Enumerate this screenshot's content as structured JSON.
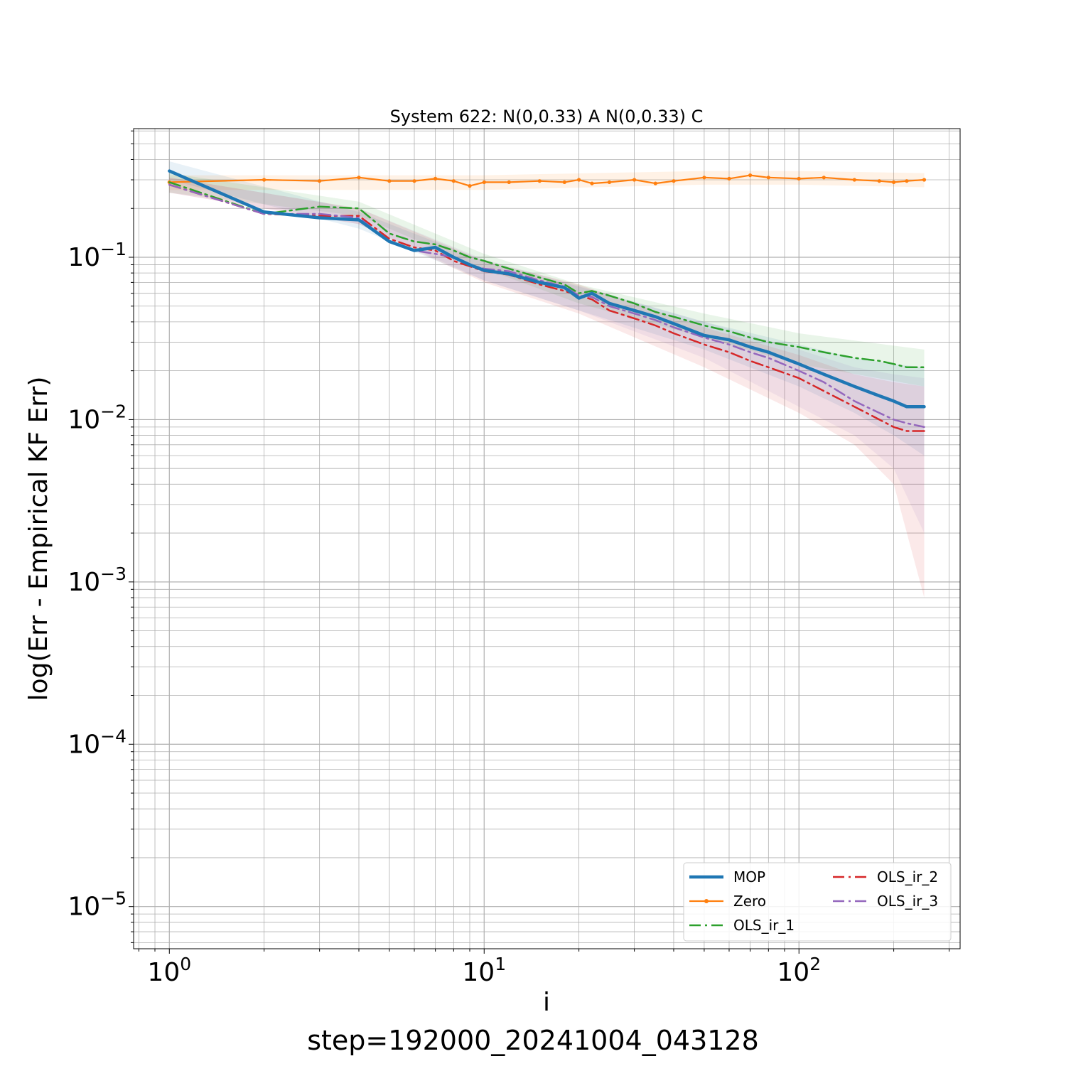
{
  "chart_data": {
    "type": "line",
    "title": "System 622: N(0,0.33) A N(0,0.33) C",
    "xlabel": "i",
    "ylabel": "log(Err - Empirical KF Err)",
    "footer": "step=192000_20241004_043128",
    "xscale": "log",
    "yscale": "log",
    "xlim": [
      0.77,
      325
    ],
    "ylim": [
      5.5e-06,
      0.62
    ],
    "grid": true,
    "legend_position": "bottom-right",
    "x_ticks": [
      {
        "value": 1,
        "base": "10",
        "exp": "0"
      },
      {
        "value": 10,
        "base": "10",
        "exp": "1"
      },
      {
        "value": 100,
        "base": "10",
        "exp": "2"
      }
    ],
    "y_ticks": [
      {
        "value": 0.1,
        "base": "10",
        "exp": "−1"
      },
      {
        "value": 0.01,
        "base": "10",
        "exp": "−2"
      },
      {
        "value": 0.001,
        "base": "10",
        "exp": "−3"
      },
      {
        "value": 0.0001,
        "base": "10",
        "exp": "−4"
      },
      {
        "value": 1e-05,
        "base": "10",
        "exp": "−5"
      }
    ],
    "series": [
      {
        "name": "MOP",
        "color": "#1f77b4",
        "style": "solid",
        "width": 4.5,
        "marker": false,
        "points": [
          [
            1,
            0.34
          ],
          [
            2,
            0.19
          ],
          [
            3,
            0.175
          ],
          [
            4,
            0.17
          ],
          [
            5,
            0.125
          ],
          [
            6,
            0.11
          ],
          [
            7,
            0.115
          ],
          [
            8,
            0.1
          ],
          [
            9,
            0.09
          ],
          [
            10,
            0.083
          ],
          [
            12,
            0.079
          ],
          [
            15,
            0.07
          ],
          [
            18,
            0.065
          ],
          [
            20,
            0.056
          ],
          [
            22,
            0.06
          ],
          [
            25,
            0.052
          ],
          [
            30,
            0.047
          ],
          [
            35,
            0.043
          ],
          [
            40,
            0.039
          ],
          [
            50,
            0.033
          ],
          [
            60,
            0.031
          ],
          [
            70,
            0.028
          ],
          [
            80,
            0.026
          ],
          [
            100,
            0.022
          ],
          [
            120,
            0.019
          ],
          [
            150,
            0.016
          ],
          [
            180,
            0.014
          ],
          [
            200,
            0.013
          ],
          [
            220,
            0.012
          ],
          [
            250,
            0.012
          ]
        ],
        "band": [
          [
            1,
            0.39,
            0.3
          ],
          [
            4,
            0.19,
            0.15
          ],
          [
            10,
            0.095,
            0.072
          ],
          [
            20,
            0.066,
            0.047
          ],
          [
            50,
            0.04,
            0.027
          ],
          [
            100,
            0.029,
            0.016
          ],
          [
            150,
            0.024,
            0.011
          ],
          [
            200,
            0.022,
            0.008
          ],
          [
            250,
            0.021,
            0.006
          ]
        ]
      },
      {
        "name": "Zero",
        "color": "#ff7f0e",
        "style": "solid",
        "width": 2.2,
        "marker": true,
        "points": [
          [
            1,
            0.29
          ],
          [
            2,
            0.3
          ],
          [
            3,
            0.295
          ],
          [
            4,
            0.31
          ],
          [
            5,
            0.295
          ],
          [
            6,
            0.295
          ],
          [
            7,
            0.305
          ],
          [
            8,
            0.295
          ],
          [
            9,
            0.275
          ],
          [
            10,
            0.29
          ],
          [
            12,
            0.29
          ],
          [
            15,
            0.295
          ],
          [
            18,
            0.29
          ],
          [
            20,
            0.3
          ],
          [
            22,
            0.285
          ],
          [
            25,
            0.29
          ],
          [
            30,
            0.3
          ],
          [
            35,
            0.285
          ],
          [
            40,
            0.295
          ],
          [
            50,
            0.31
          ],
          [
            60,
            0.305
          ],
          [
            70,
            0.32
          ],
          [
            80,
            0.31
          ],
          [
            100,
            0.305
          ],
          [
            120,
            0.31
          ],
          [
            150,
            0.3
          ],
          [
            180,
            0.295
          ],
          [
            200,
            0.29
          ],
          [
            220,
            0.295
          ],
          [
            250,
            0.3
          ]
        ],
        "band": [
          [
            1,
            0.32,
            0.26
          ],
          [
            10,
            0.32,
            0.26
          ],
          [
            50,
            0.34,
            0.28
          ],
          [
            100,
            0.34,
            0.28
          ],
          [
            250,
            0.33,
            0.27
          ]
        ]
      },
      {
        "name": "OLS_ir_1",
        "color": "#2ca02c",
        "style": "dashdot",
        "width": 2.5,
        "marker": false,
        "points": [
          [
            1,
            0.29
          ],
          [
            2,
            0.185
          ],
          [
            3,
            0.205
          ],
          [
            4,
            0.2
          ],
          [
            5,
            0.14
          ],
          [
            6,
            0.125
          ],
          [
            7,
            0.12
          ],
          [
            8,
            0.11
          ],
          [
            9,
            0.1
          ],
          [
            10,
            0.095
          ],
          [
            12,
            0.085
          ],
          [
            15,
            0.075
          ],
          [
            18,
            0.068
          ],
          [
            20,
            0.06
          ],
          [
            22,
            0.062
          ],
          [
            25,
            0.058
          ],
          [
            30,
            0.052
          ],
          [
            35,
            0.046
          ],
          [
            40,
            0.043
          ],
          [
            50,
            0.038
          ],
          [
            60,
            0.035
          ],
          [
            70,
            0.032
          ],
          [
            80,
            0.03
          ],
          [
            100,
            0.028
          ],
          [
            120,
            0.026
          ],
          [
            150,
            0.024
          ],
          [
            180,
            0.023
          ],
          [
            200,
            0.022
          ],
          [
            220,
            0.021
          ],
          [
            250,
            0.021
          ]
        ],
        "band": [
          [
            1,
            0.33,
            0.25
          ],
          [
            4,
            0.22,
            0.18
          ],
          [
            10,
            0.105,
            0.085
          ],
          [
            20,
            0.068,
            0.052
          ],
          [
            50,
            0.045,
            0.032
          ],
          [
            100,
            0.034,
            0.022
          ],
          [
            250,
            0.027,
            0.016
          ]
        ]
      },
      {
        "name": "OLS_ir_2",
        "color": "#d62728",
        "style": "dashdot",
        "width": 2.5,
        "marker": false,
        "points": [
          [
            1,
            0.28
          ],
          [
            2,
            0.185
          ],
          [
            3,
            0.18
          ],
          [
            4,
            0.18
          ],
          [
            5,
            0.13
          ],
          [
            6,
            0.115
          ],
          [
            7,
            0.11
          ],
          [
            8,
            0.095
          ],
          [
            9,
            0.088
          ],
          [
            10,
            0.082
          ],
          [
            12,
            0.078
          ],
          [
            15,
            0.068
          ],
          [
            18,
            0.062
          ],
          [
            20,
            0.058
          ],
          [
            22,
            0.055
          ],
          [
            25,
            0.047
          ],
          [
            30,
            0.042
          ],
          [
            35,
            0.038
          ],
          [
            40,
            0.034
          ],
          [
            50,
            0.029
          ],
          [
            60,
            0.026
          ],
          [
            70,
            0.023
          ],
          [
            80,
            0.021
          ],
          [
            100,
            0.018
          ],
          [
            120,
            0.015
          ],
          [
            150,
            0.012
          ],
          [
            180,
            0.01
          ],
          [
            200,
            0.009
          ],
          [
            220,
            0.0085
          ],
          [
            250,
            0.0085
          ]
        ],
        "band": [
          [
            1,
            0.31,
            0.25
          ],
          [
            4,
            0.2,
            0.16
          ],
          [
            10,
            0.095,
            0.07
          ],
          [
            20,
            0.068,
            0.045
          ],
          [
            50,
            0.037,
            0.021
          ],
          [
            100,
            0.025,
            0.011
          ],
          [
            150,
            0.019,
            0.007
          ],
          [
            200,
            0.017,
            0.004
          ],
          [
            250,
            0.016,
            0.0008
          ]
        ]
      },
      {
        "name": "OLS_ir_3",
        "color": "#9467bd",
        "style": "dashdot",
        "width": 2.5,
        "marker": false,
        "points": [
          [
            1,
            0.28
          ],
          [
            2,
            0.185
          ],
          [
            3,
            0.185
          ],
          [
            4,
            0.175
          ],
          [
            5,
            0.125
          ],
          [
            6,
            0.11
          ],
          [
            7,
            0.105
          ],
          [
            8,
            0.1
          ],
          [
            9,
            0.09
          ],
          [
            10,
            0.085
          ],
          [
            12,
            0.082
          ],
          [
            15,
            0.072
          ],
          [
            18,
            0.066
          ],
          [
            20,
            0.058
          ],
          [
            22,
            0.057
          ],
          [
            25,
            0.05
          ],
          [
            30,
            0.045
          ],
          [
            35,
            0.041
          ],
          [
            40,
            0.037
          ],
          [
            50,
            0.032
          ],
          [
            60,
            0.029
          ],
          [
            70,
            0.026
          ],
          [
            80,
            0.024
          ],
          [
            100,
            0.02
          ],
          [
            120,
            0.017
          ],
          [
            150,
            0.013
          ],
          [
            180,
            0.011
          ],
          [
            200,
            0.01
          ],
          [
            220,
            0.0095
          ],
          [
            250,
            0.009
          ]
        ],
        "band": [
          [
            1,
            0.31,
            0.25
          ],
          [
            4,
            0.2,
            0.16
          ],
          [
            10,
            0.097,
            0.072
          ],
          [
            20,
            0.067,
            0.047
          ],
          [
            50,
            0.04,
            0.024
          ],
          [
            100,
            0.027,
            0.012
          ],
          [
            150,
            0.021,
            0.008
          ],
          [
            200,
            0.019,
            0.005
          ],
          [
            250,
            0.018,
            0.002
          ]
        ]
      }
    ],
    "legend": [
      {
        "label": "MOP",
        "series": 0,
        "column": 0,
        "row": 0
      },
      {
        "label": "Zero",
        "series": 1,
        "column": 0,
        "row": 1
      },
      {
        "label": "OLS_ir_1",
        "series": 2,
        "column": 0,
        "row": 2
      },
      {
        "label": "OLS_ir_2",
        "series": 3,
        "column": 1,
        "row": 0
      },
      {
        "label": "OLS_ir_3",
        "series": 4,
        "column": 1,
        "row": 1
      }
    ]
  }
}
